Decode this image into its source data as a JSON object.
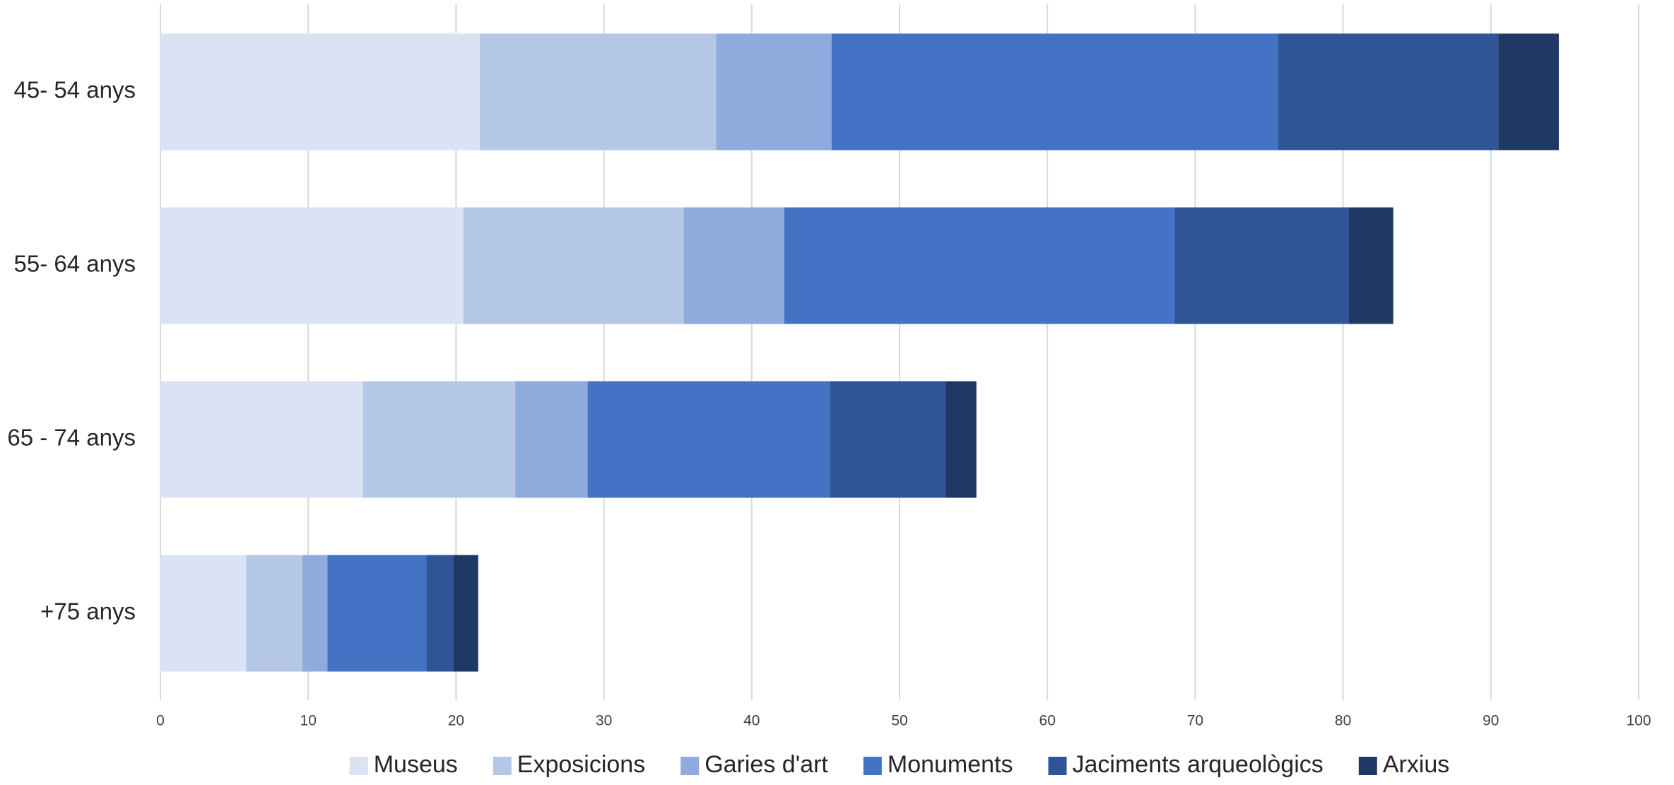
{
  "chart_data": {
    "type": "stacked-barh",
    "categories": [
      "45- 54 anys",
      "55- 64 anys",
      "65 - 74 anys",
      "+75 anys"
    ],
    "series": [
      {
        "name": "Museus",
        "color": "#dae3f3",
        "values": [
          21.6,
          20.5,
          13.7,
          5.8
        ]
      },
      {
        "name": "Exposicions",
        "color": "#b4c7e7",
        "values": [
          16.0,
          14.9,
          10.3,
          3.8
        ]
      },
      {
        "name": "Garies d'art",
        "color": "#8faadc",
        "values": [
          7.8,
          6.8,
          4.9,
          1.7
        ]
      },
      {
        "name": "Monuments",
        "color": "#4472c4",
        "values": [
          30.2,
          26.4,
          16.4,
          6.7
        ]
      },
      {
        "name": "Jaciments arqueològics",
        "color": "#2f5597",
        "values": [
          14.9,
          11.8,
          7.8,
          1.8
        ]
      },
      {
        "name": "Arxius",
        "color": "#203864",
        "values": [
          4.1,
          3.0,
          2.1,
          1.7
        ]
      }
    ],
    "xlim": [
      0,
      100
    ],
    "xticks": [
      0,
      10,
      20,
      30,
      40,
      50,
      60,
      70,
      80,
      90,
      100
    ],
    "grid": true,
    "legend": "bottom"
  }
}
